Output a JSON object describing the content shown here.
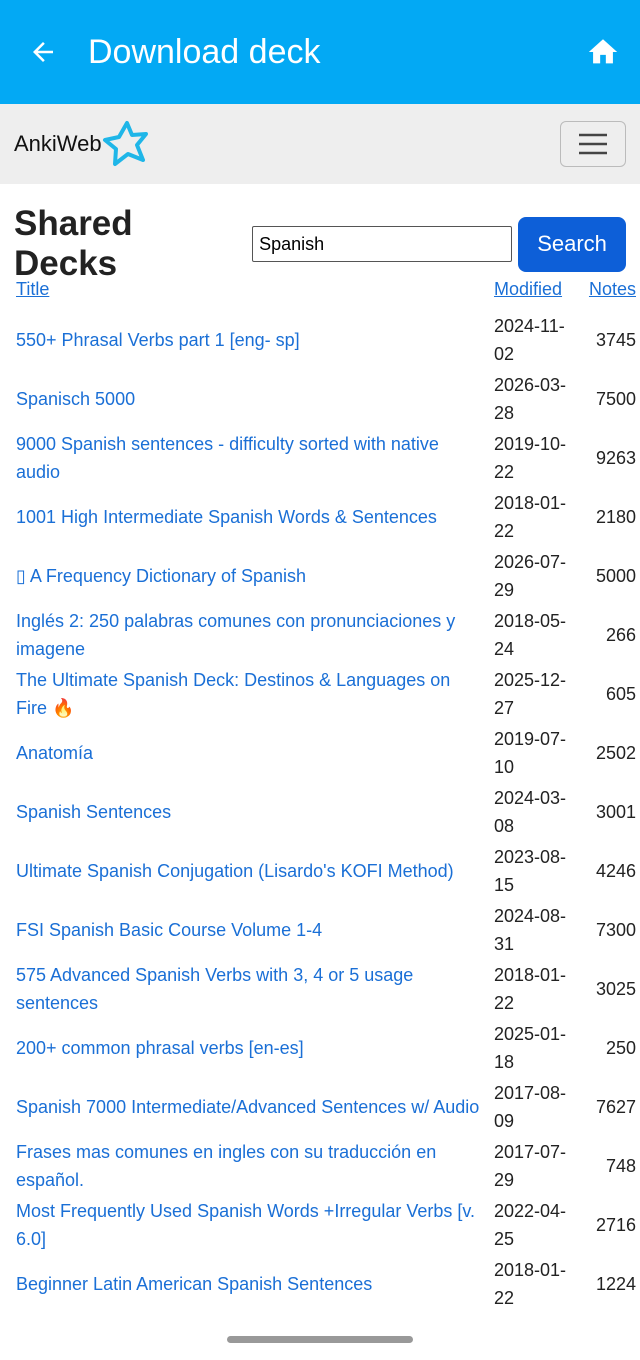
{
  "app_bar": {
    "title": "Download deck"
  },
  "navbar": {
    "brand": "AnkiWeb"
  },
  "search": {
    "heading": "Shared Decks",
    "query": "Spanish",
    "button": "Search"
  },
  "table": {
    "headers": [
      "Title",
      "Modified",
      "Notes"
    ],
    "rows": [
      [
        "550+ Phrasal Verbs part 1 [eng- sp]",
        "2024-11-02",
        "3745"
      ],
      [
        "Spanisch 5000",
        "2026-03-28",
        "7500"
      ],
      [
        "9000 Spanish sentences - difficulty sorted with native audio",
        "2019-10-22",
        "9263"
      ],
      [
        "1001 High Intermediate Spanish Words & Sentences",
        "2018-01-22",
        "2180"
      ],
      [
        "▯ A Frequency Dictionary of Spanish",
        "2026-07-29",
        "5000"
      ],
      [
        "Inglés 2: 250 palabras comunes con pronunciaciones y imagene",
        "2018-05-24",
        "266"
      ],
      [
        "The Ultimate Spanish Deck: Destinos & Languages on Fire 🔥",
        "2025-12-27",
        "605"
      ],
      [
        "Anatomía",
        "2019-07-10",
        "2502"
      ],
      [
        "Spanish Sentences",
        "2024-03-08",
        "3001"
      ],
      [
        "Ultimate Spanish Conjugation (Lisardo's KOFI Method)",
        "2023-08-15",
        "4246"
      ],
      [
        "FSI Spanish Basic Course Volume 1-4",
        "2024-08-31",
        "7300"
      ],
      [
        "575 Advanced Spanish Verbs with 3, 4 or 5 usage sentences",
        "2018-01-22",
        "3025"
      ],
      [
        "200+ common phrasal verbs [en-es]",
        "2025-01-18",
        "250"
      ],
      [
        "Spanish 7000 Intermediate/Advanced Sentences w/ Audio",
        "2017-08-09",
        "7627"
      ],
      [
        "Frases mas comunes en ingles con su traducción en español.",
        "2017-07-29",
        "748"
      ],
      [
        "Most Frequently Used Spanish Words +Irregular Verbs [v. 6.0]",
        "2022-04-25",
        "2716"
      ],
      [
        "Beginner Latin American Spanish Sentences",
        "2018-01-22",
        "1224"
      ]
    ]
  }
}
